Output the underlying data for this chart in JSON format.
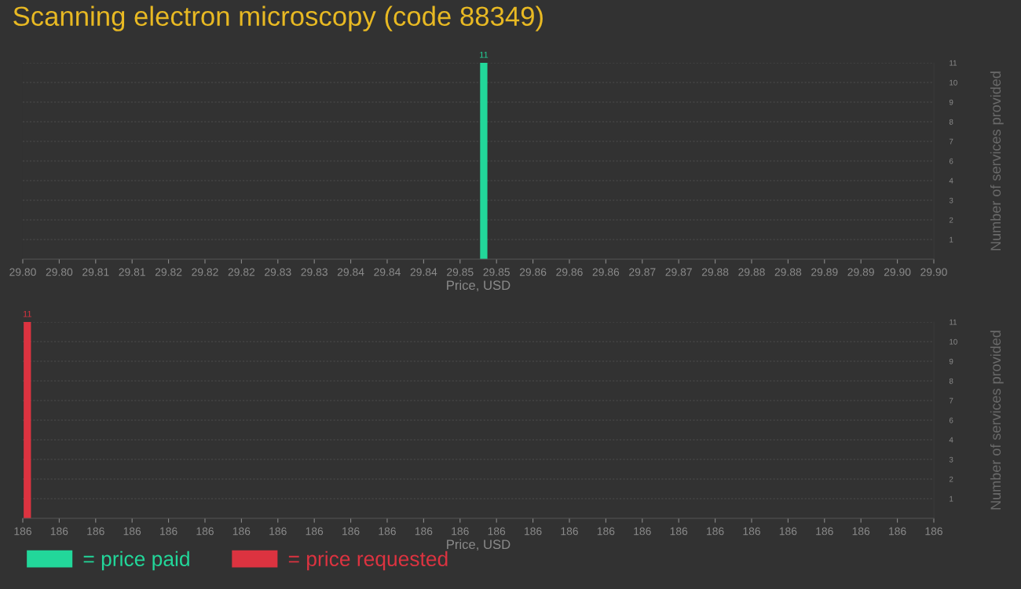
{
  "chart_data": [
    {
      "type": "histogram",
      "title": "Scanning electron microscopy (code 88349)",
      "xlabel": "Price, USD",
      "ylabel": "Number of services provided",
      "bins": [
        29.8502,
        29.851
      ],
      "series": [
        {
          "name": "= price paid",
          "color": "#22d79a",
          "values": [
            11
          ]
        }
      ],
      "xlim": [
        29.8,
        29.9
      ],
      "xticks": [
        {
          "value": 29.8,
          "label": "29.80"
        },
        {
          "value": 29.804,
          "label": "29.80"
        },
        {
          "value": 29.808,
          "label": "29.81"
        },
        {
          "value": 29.812,
          "label": "29.81"
        },
        {
          "value": 29.816,
          "label": "29.82"
        },
        {
          "value": 29.82,
          "label": "29.82"
        },
        {
          "value": 29.824,
          "label": "29.82"
        },
        {
          "value": 29.828,
          "label": "29.83"
        },
        {
          "value": 29.832,
          "label": "29.83"
        },
        {
          "value": 29.836,
          "label": "29.84"
        },
        {
          "value": 29.84,
          "label": "29.84"
        },
        {
          "value": 29.844,
          "label": "29.84"
        },
        {
          "value": 29.848,
          "label": "29.85"
        },
        {
          "value": 29.852,
          "label": "29.85"
        },
        {
          "value": 29.856,
          "label": "29.86"
        },
        {
          "value": 29.86,
          "label": "29.86"
        },
        {
          "value": 29.864,
          "label": "29.86"
        },
        {
          "value": 29.868,
          "label": "29.87"
        },
        {
          "value": 29.872,
          "label": "29.87"
        },
        {
          "value": 29.876,
          "label": "29.88"
        },
        {
          "value": 29.88,
          "label": "29.88"
        },
        {
          "value": 29.884,
          "label": "29.88"
        },
        {
          "value": 29.888,
          "label": "29.89"
        },
        {
          "value": 29.892,
          "label": "29.89"
        },
        {
          "value": 29.896,
          "label": "29.90"
        },
        {
          "value": 29.9,
          "label": "29.90"
        }
      ],
      "ylim": [
        0,
        11
      ],
      "yticks": [
        {
          "value": 1.1,
          "label": "1"
        },
        {
          "value": 2.2,
          "label": "2"
        },
        {
          "value": 3.3,
          "label": "3"
        },
        {
          "value": 4.4,
          "label": "4"
        },
        {
          "value": 5.5,
          "label": "6"
        },
        {
          "value": 6.6,
          "label": "7"
        },
        {
          "value": 7.7,
          "label": "8"
        },
        {
          "value": 8.8,
          "label": "9"
        },
        {
          "value": 9.9,
          "label": "10"
        },
        {
          "value": 11,
          "label": "11"
        }
      ],
      "grid": "y",
      "data_labels": true,
      "legend": "bottom left"
    },
    {
      "type": "histogram",
      "xlabel": "Price, USD",
      "ylabel": "Number of services provided",
      "bins": [
        186.0001,
        186.0009
      ],
      "series": [
        {
          "name": "= price requested",
          "color": "#dc3340",
          "values": [
            11
          ]
        }
      ],
      "xlim": [
        186,
        186.1
      ],
      "xticks": [
        {
          "value": 186.0,
          "label": "186"
        },
        {
          "value": 186.004,
          "label": "186"
        },
        {
          "value": 186.008,
          "label": "186"
        },
        {
          "value": 186.012,
          "label": "186"
        },
        {
          "value": 186.016,
          "label": "186"
        },
        {
          "value": 186.02,
          "label": "186"
        },
        {
          "value": 186.024,
          "label": "186"
        },
        {
          "value": 186.028,
          "label": "186"
        },
        {
          "value": 186.032,
          "label": "186"
        },
        {
          "value": 186.036,
          "label": "186"
        },
        {
          "value": 186.04,
          "label": "186"
        },
        {
          "value": 186.044,
          "label": "186"
        },
        {
          "value": 186.048,
          "label": "186"
        },
        {
          "value": 186.052,
          "label": "186"
        },
        {
          "value": 186.056,
          "label": "186"
        },
        {
          "value": 186.06,
          "label": "186"
        },
        {
          "value": 186.064,
          "label": "186"
        },
        {
          "value": 186.068,
          "label": "186"
        },
        {
          "value": 186.072,
          "label": "186"
        },
        {
          "value": 186.076,
          "label": "186"
        },
        {
          "value": 186.08,
          "label": "186"
        },
        {
          "value": 186.084,
          "label": "186"
        },
        {
          "value": 186.088,
          "label": "186"
        },
        {
          "value": 186.092,
          "label": "186"
        },
        {
          "value": 186.096,
          "label": "186"
        },
        {
          "value": 186.1,
          "label": "186"
        }
      ],
      "ylim": [
        0,
        11
      ],
      "yticks": [
        {
          "value": 1.1,
          "label": "1"
        },
        {
          "value": 2.2,
          "label": "2"
        },
        {
          "value": 3.3,
          "label": "3"
        },
        {
          "value": 4.4,
          "label": "4"
        },
        {
          "value": 5.5,
          "label": "6"
        },
        {
          "value": 6.6,
          "label": "7"
        },
        {
          "value": 7.7,
          "label": "8"
        },
        {
          "value": 8.8,
          "label": "9"
        },
        {
          "value": 9.9,
          "label": "10"
        },
        {
          "value": 11,
          "label": "11"
        }
      ],
      "grid": "y",
      "data_labels": true,
      "legend": "bottom left"
    }
  ]
}
